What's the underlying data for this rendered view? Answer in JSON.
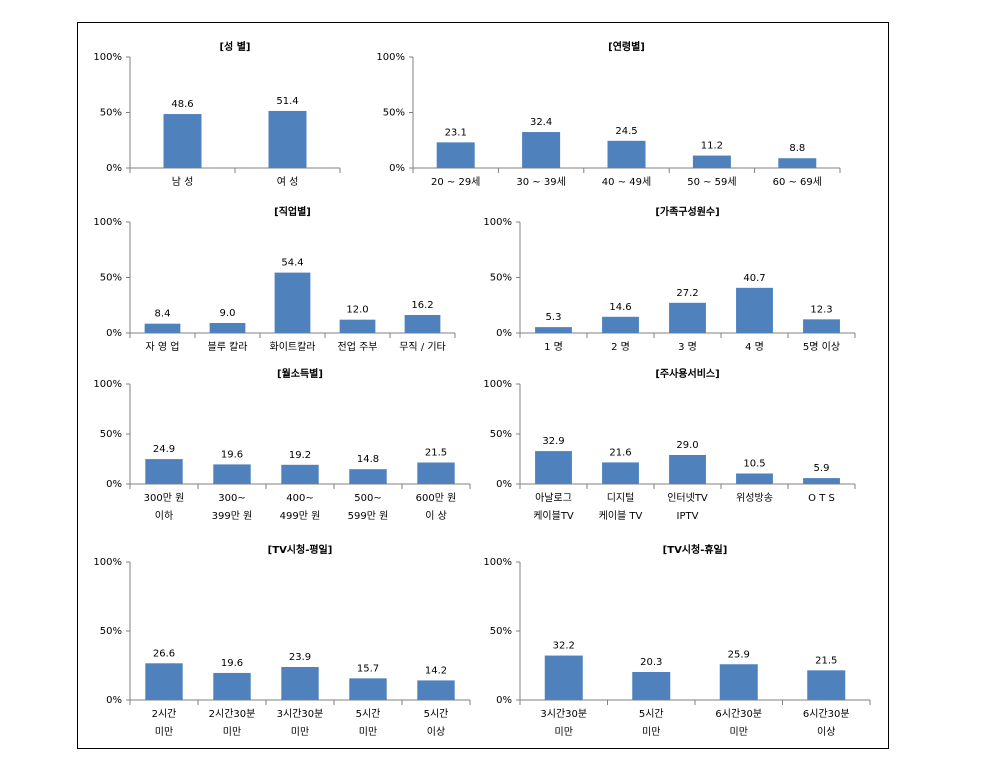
{
  "chart_data": [
    {
      "type": "bar",
      "title": "[성  별]",
      "categories": [
        "남 성",
        "여 성"
      ],
      "values": [
        48.6,
        51.4
      ],
      "value_labels": [
        "48.6",
        "51.4"
      ],
      "color": "#4f81bd",
      "ylim": [
        0,
        100
      ],
      "yticks": [
        {
          "value": 0,
          "label": "0%"
        },
        {
          "value": 50,
          "label": "50%"
        },
        {
          "value": 100,
          "label": "100%"
        }
      ]
    },
    {
      "type": "bar",
      "title": "[연령별]",
      "categories": [
        "20 ~ 29세",
        "30 ~ 39세",
        "40 ~ 49세",
        "50 ~ 59세",
        "60 ~ 69세"
      ],
      "values": [
        23.1,
        32.4,
        24.5,
        11.2,
        8.8
      ],
      "value_labels": [
        "23.1",
        "32.4",
        "24.5",
        "11.2",
        "8.8"
      ],
      "color": "#4f81bd",
      "ylim": [
        0,
        100
      ],
      "yticks": [
        {
          "value": 0,
          "label": "0%"
        },
        {
          "value": 50,
          "label": "50%"
        },
        {
          "value": 100,
          "label": "100%"
        }
      ]
    },
    {
      "type": "bar",
      "title": "[직업별]",
      "categories": [
        "자 영 업",
        "블루 칼라",
        "화이트칼라",
        "전업 주부",
        "무직 / 기타"
      ],
      "values": [
        8.4,
        9.0,
        54.4,
        12.0,
        16.2
      ],
      "value_labels": [
        "8.4",
        "9.0",
        "54.4",
        "12.0",
        "16.2"
      ],
      "color": "#4f81bd",
      "ylim": [
        0,
        100
      ],
      "yticks": [
        {
          "value": 0,
          "label": "0%"
        },
        {
          "value": 50,
          "label": "50%"
        },
        {
          "value": 100,
          "label": "100%"
        }
      ]
    },
    {
      "type": "bar",
      "title": "[가족구성원수]",
      "categories": [
        "1 명",
        "2 명",
        "3 명",
        "4 명",
        "5명 이상"
      ],
      "values": [
        5.3,
        14.6,
        27.2,
        40.7,
        12.3
      ],
      "value_labels": [
        "5.3",
        "14.6",
        "27.2",
        "40.7",
        "12.3"
      ],
      "color": "#4f81bd",
      "ylim": [
        0,
        100
      ],
      "yticks": [
        {
          "value": 0,
          "label": "0%"
        },
        {
          "value": 50,
          "label": "50%"
        },
        {
          "value": 100,
          "label": "100%"
        }
      ]
    },
    {
      "type": "bar",
      "title": "[월소득별]",
      "categories": [
        [
          "300만 원",
          "이하"
        ],
        [
          "300~",
          "399만 원"
        ],
        [
          "400~",
          "499만 원"
        ],
        [
          "500~",
          "599만 원"
        ],
        [
          "600만 원",
          "이 상"
        ]
      ],
      "values": [
        24.9,
        19.6,
        19.2,
        14.8,
        21.5
      ],
      "value_labels": [
        "24.9",
        "19.6",
        "19.2",
        "14.8",
        "21.5"
      ],
      "color": "#4f81bd",
      "ylim": [
        0,
        100
      ],
      "yticks": [
        {
          "value": 0,
          "label": "0%"
        },
        {
          "value": 50,
          "label": "50%"
        },
        {
          "value": 100,
          "label": "100%"
        }
      ]
    },
    {
      "type": "bar",
      "title": "[주사용서비스]",
      "categories": [
        [
          "아날로그",
          "케이블TV"
        ],
        [
          "디지털",
          "케이블 TV"
        ],
        [
          "인터넷TV",
          "IPTV"
        ],
        [
          "위성방송"
        ],
        [
          "O T S"
        ]
      ],
      "values": [
        32.9,
        21.6,
        29.0,
        10.5,
        5.9
      ],
      "value_labels": [
        "32.9",
        "21.6",
        "29.0",
        "10.5",
        "5.9"
      ],
      "color": "#4f81bd",
      "ylim": [
        0,
        100
      ],
      "yticks": [
        {
          "value": 0,
          "label": "0%"
        },
        {
          "value": 50,
          "label": "50%"
        },
        {
          "value": 100,
          "label": "100%"
        }
      ]
    },
    {
      "type": "bar",
      "title": "[TV시청-평일]",
      "categories": [
        [
          "2시간",
          "미만"
        ],
        [
          "2시간30분",
          "미만"
        ],
        [
          "3시간30분",
          "미만"
        ],
        [
          "5시간",
          "미만"
        ],
        [
          "5시간",
          "이상"
        ]
      ],
      "values": [
        26.6,
        19.6,
        23.9,
        15.7,
        14.2
      ],
      "value_labels": [
        "26.6",
        "19.6",
        "23.9",
        "15.7",
        "14.2"
      ],
      "color": "#4f81bd",
      "ylim": [
        0,
        100
      ],
      "yticks": [
        {
          "value": 0,
          "label": "0%"
        },
        {
          "value": 50,
          "label": "50%"
        },
        {
          "value": 100,
          "label": "100%"
        }
      ]
    },
    {
      "type": "bar",
      "title": "[TV시청-휴일]",
      "categories": [
        [
          "3시간30분",
          "미만"
        ],
        [
          "5시간",
          "미만"
        ],
        [
          "6시간30분",
          "미만"
        ],
        [
          "6시간30분",
          "이상"
        ]
      ],
      "values": [
        32.2,
        20.3,
        25.9,
        21.5
      ],
      "value_labels": [
        "32.2",
        "20.3",
        "25.9",
        "21.5"
      ],
      "color": "#4f81bd",
      "ylim": [
        0,
        100
      ],
      "yticks": [
        {
          "value": 0,
          "label": "0%"
        },
        {
          "value": 50,
          "label": "50%"
        },
        {
          "value": 100,
          "label": "100%"
        }
      ]
    }
  ]
}
